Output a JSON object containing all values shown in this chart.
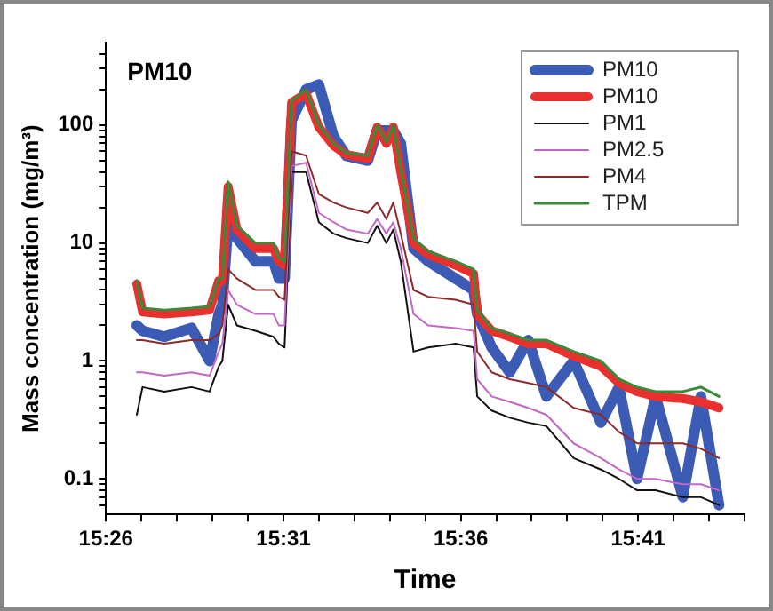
{
  "chart_data": {
    "type": "line",
    "title": "PM10",
    "xlabel": "Time",
    "ylabel": "Mass concentration (mg/m³)",
    "log": "y",
    "grid": false,
    "legend": "top right",
    "marker": "none",
    "line_style": "solid",
    "xlim": [
      15.4333,
      15.7333
    ],
    "xticks": [
      {
        "value": 15.4333,
        "label": "15:26"
      },
      {
        "value": 15.45,
        "label": null
      },
      {
        "value": 15.4667,
        "label": null
      },
      {
        "value": 15.4833,
        "label": null
      },
      {
        "value": 15.5,
        "label": null
      },
      {
        "value": 15.5167,
        "label": "15:31"
      },
      {
        "value": 15.5333,
        "label": null
      },
      {
        "value": 15.55,
        "label": null
      },
      {
        "value": 15.5667,
        "label": null
      },
      {
        "value": 15.5833,
        "label": null
      },
      {
        "value": 15.6,
        "label": "15:36"
      },
      {
        "value": 15.6167,
        "label": null
      },
      {
        "value": 15.6333,
        "label": null
      },
      {
        "value": 15.65,
        "label": null
      },
      {
        "value": 15.6667,
        "label": null
      },
      {
        "value": 15.6833,
        "label": "15:41"
      },
      {
        "value": 15.7,
        "label": null
      },
      {
        "value": 15.7167,
        "label": null
      },
      {
        "value": 15.7333,
        "label": null
      }
    ],
    "ylim": [
      0.05,
      500
    ],
    "yticks": [
      {
        "value": 0.06,
        "label": null
      },
      {
        "value": 0.07,
        "label": null
      },
      {
        "value": 0.08,
        "label": null
      },
      {
        "value": 0.09,
        "label": null
      },
      0.1,
      {
        "value": 0.2,
        "label": null
      },
      {
        "value": 0.3,
        "label": null
      },
      {
        "value": 0.4,
        "label": null
      },
      {
        "value": 0.5,
        "label": null
      },
      {
        "value": 0.6,
        "label": null
      },
      {
        "value": 0.7,
        "label": null
      },
      {
        "value": 0.8,
        "label": null
      },
      {
        "value": 0.9,
        "label": null
      },
      1,
      {
        "value": 2,
        "label": null
      },
      {
        "value": 3,
        "label": null
      },
      {
        "value": 4,
        "label": null
      },
      {
        "value": 5,
        "label": null
      },
      {
        "value": 6,
        "label": null
      },
      {
        "value": 7,
        "label": null
      },
      {
        "value": 8,
        "label": null
      },
      {
        "value": 9,
        "label": null
      },
      10,
      {
        "value": 20,
        "label": null
      },
      {
        "value": 30,
        "label": null
      },
      {
        "value": 40,
        "label": null
      },
      {
        "value": 50,
        "label": null
      },
      {
        "value": 60,
        "label": null
      },
      {
        "value": 70,
        "label": null
      },
      {
        "value": 80,
        "label": null
      },
      {
        "value": 90,
        "label": null
      },
      100,
      {
        "value": 200,
        "label": null
      },
      {
        "value": 300,
        "label": null
      },
      {
        "value": 400,
        "label": null
      }
    ],
    "x": [
      15.4478,
      15.4505,
      15.4607,
      15.4735,
      15.482,
      15.4863,
      15.488,
      15.4907,
      15.4948,
      15.5035,
      15.512,
      15.5145,
      15.5172,
      15.5205,
      15.5273,
      15.5333,
      15.5402,
      15.5462,
      15.5563,
      15.5607,
      15.565,
      15.5683,
      15.5718,
      15.5778,
      15.5847,
      15.5975,
      15.606,
      15.6077,
      15.6145,
      15.623,
      15.6317,
      15.6402,
      15.653,
      15.6658,
      15.6743,
      15.6828,
      15.6915,
      15.7043,
      15.7128,
      15.7213
    ],
    "series": [
      {
        "name": "PM10",
        "color": "#3b5bb5",
        "values": [
          2,
          1.8,
          1.6,
          1.9,
          1.0,
          2.5,
          3,
          15,
          11,
          7,
          7,
          5,
          5,
          110,
          200,
          220,
          80,
          55,
          50,
          90,
          90,
          90,
          70,
          9,
          7,
          5,
          4,
          2.5,
          1.3,
          0.8,
          1.5,
          0.5,
          1.0,
          0.3,
          0.6,
          0.1,
          0.5,
          0.07,
          0.5,
          0.06
        ]
      },
      {
        "name": "PM10",
        "color": "#e8302f",
        "values": [
          4.5,
          2.6,
          2.5,
          2.6,
          2.7,
          4.8,
          4.8,
          30,
          13,
          9,
          9,
          7,
          6.5,
          155,
          185,
          96,
          67,
          56,
          52,
          96,
          70,
          96,
          40,
          10,
          8,
          6.5,
          5.5,
          2.5,
          1.8,
          1.6,
          1.4,
          1.4,
          1.1,
          0.9,
          0.65,
          0.55,
          0.5,
          0.48,
          0.45,
          0.4
        ]
      },
      {
        "name": "PM1",
        "color": "#111111",
        "values": [
          0.35,
          0.6,
          0.55,
          0.6,
          0.55,
          0.9,
          1,
          3,
          2,
          1.8,
          1.6,
          1.4,
          1.3,
          40,
          40,
          15,
          12,
          11,
          10,
          14,
          10,
          13,
          7,
          1.2,
          1.3,
          1.4,
          1.3,
          0.5,
          0.38,
          0.33,
          0.3,
          0.28,
          0.15,
          0.12,
          0.1,
          0.08,
          0.08,
          0.07,
          0.07,
          0.06
        ]
      },
      {
        "name": "PM2.5",
        "color": "#c466c4",
        "values": [
          0.8,
          0.8,
          0.75,
          0.8,
          0.75,
          1.2,
          1.4,
          4,
          3,
          2.5,
          2.5,
          2,
          2,
          45,
          48,
          18,
          15,
          13,
          12,
          16,
          12,
          15,
          9,
          2.5,
          2,
          1.9,
          1.8,
          0.7,
          0.5,
          0.45,
          0.4,
          0.35,
          0.2,
          0.15,
          0.12,
          0.1,
          0.1,
          0.09,
          0.09,
          0.08
        ]
      },
      {
        "name": "PM4",
        "color": "#8b2a2a",
        "values": [
          1.5,
          1.5,
          1.4,
          1.5,
          1.5,
          1.7,
          2,
          6,
          5,
          4,
          4,
          3.5,
          3.3,
          60,
          55,
          26,
          22,
          20,
          18,
          22,
          16,
          22,
          12,
          4,
          3.5,
          3.3,
          3,
          1.2,
          0.8,
          0.7,
          0.65,
          0.6,
          0.4,
          0.35,
          0.25,
          0.2,
          0.2,
          0.2,
          0.18,
          0.15
        ]
      },
      {
        "name": "TPM",
        "color": "#3a8a3a",
        "values": [
          4.8,
          2.8,
          2.7,
          2.8,
          2.9,
          5,
          5,
          33,
          14,
          10,
          10,
          7.5,
          7,
          160,
          200,
          100,
          70,
          58,
          55,
          100,
          72,
          100,
          42,
          11,
          8.5,
          7,
          6,
          2.7,
          1.9,
          1.7,
          1.5,
          1.5,
          1.2,
          1,
          0.7,
          0.6,
          0.55,
          0.55,
          0.6,
          0.5
        ]
      }
    ]
  }
}
